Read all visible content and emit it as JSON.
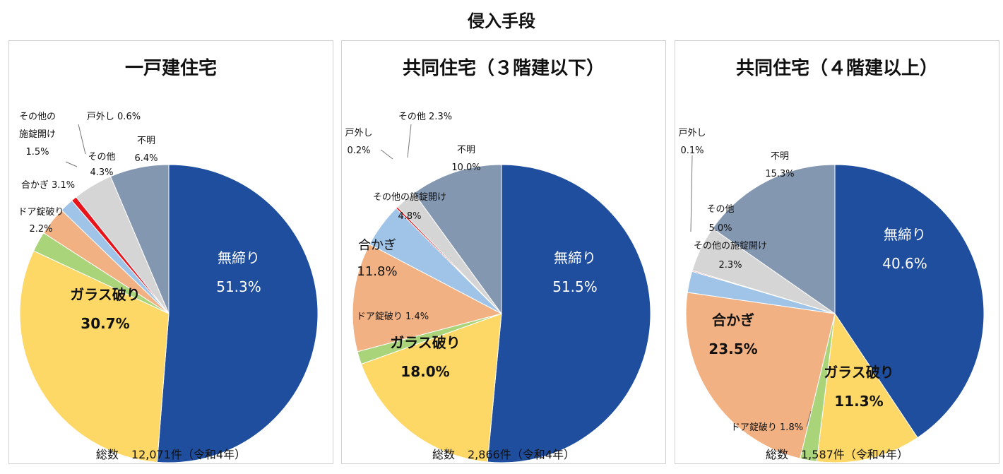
{
  "title": "侵入手段",
  "colors": {
    "無締り": "#1f4e9e",
    "ガラス破り": "#fdd866",
    "ドア錠破り": "#a9d47a",
    "合かぎ": "#f2b183",
    "その他の施錠開け": "#9fc4e8",
    "戸外し": "#e8141b",
    "その他": "#d5d5d5",
    "不明": "#8497b0"
  },
  "chart_data": [
    {
      "type": "pie",
      "title": "一戸建住宅",
      "total_label": "総数",
      "total_value": "12,071件（令和4年）",
      "slices": [
        {
          "label": "無締り",
          "value": 51.3,
          "value_text": "51.3%"
        },
        {
          "label": "ガラス破り",
          "value": 30.7,
          "value_text": "30.7%"
        },
        {
          "label": "ドア錠破り",
          "value": 2.2,
          "value_text": "2.2%"
        },
        {
          "label": "合かぎ",
          "value": 3.1,
          "value_text": "3.1%"
        },
        {
          "label": "その他の施錠開け",
          "value": 1.5,
          "value_text": "1.5%"
        },
        {
          "label": "戸外し",
          "value": 0.6,
          "value_text": "0.6%"
        },
        {
          "label": "その他",
          "value": 4.3,
          "value_text": "4.3%"
        },
        {
          "label": "不明",
          "value": 6.4,
          "value_text": "6.4%"
        }
      ]
    },
    {
      "type": "pie",
      "title": "共同住宅（３階建以下）",
      "total_label": "総数",
      "total_value": "2,866件（令和4年）",
      "slices": [
        {
          "label": "無締り",
          "value": 51.5,
          "value_text": "51.5%"
        },
        {
          "label": "ガラス破り",
          "value": 18.0,
          "value_text": "18.0%"
        },
        {
          "label": "ドア錠破り",
          "value": 1.4,
          "value_text": "1.4%"
        },
        {
          "label": "合かぎ",
          "value": 11.8,
          "value_text": "11.8%"
        },
        {
          "label": "その他の施錠開け",
          "value": 4.8,
          "value_text": "4.8%"
        },
        {
          "label": "戸外し",
          "value": 0.2,
          "value_text": "0.2%"
        },
        {
          "label": "その他",
          "value": 2.3,
          "value_text": "2.3%"
        },
        {
          "label": "不明",
          "value": 10.0,
          "value_text": "10.0%"
        }
      ]
    },
    {
      "type": "pie",
      "title": "共同住宅（４階建以上）",
      "total_label": "総数",
      "total_value": "1,587件（令和4年）",
      "slices": [
        {
          "label": "無締り",
          "value": 40.6,
          "value_text": "40.6%"
        },
        {
          "label": "ガラス破り",
          "value": 11.3,
          "value_text": "11.3%"
        },
        {
          "label": "ドア錠破り",
          "value": 1.8,
          "value_text": "1.8%"
        },
        {
          "label": "合かぎ",
          "value": 23.5,
          "value_text": "23.5%"
        },
        {
          "label": "その他の施錠開け",
          "value": 2.3,
          "value_text": "2.3%"
        },
        {
          "label": "戸外し",
          "value": 0.1,
          "value_text": "0.1%"
        },
        {
          "label": "その他",
          "value": 5.0,
          "value_text": "5.0%"
        },
        {
          "label": "不明",
          "value": 15.3,
          "value_text": "15.3%"
        }
      ]
    }
  ]
}
